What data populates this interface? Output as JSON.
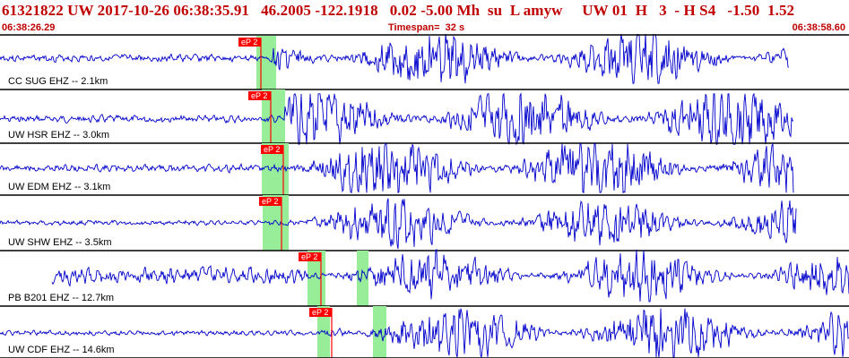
{
  "header": {
    "title": "61321822 UW 2017-10-26 06:38:35.91   46.2005 -122.1918   0.02 -5.00 Mh  su  L amyw     UW 01  H   3  - H S4   -1.50  1.52",
    "start_time": "06:38:26.29",
    "timespan": "Timespan=  32 s",
    "end_time": "06:38:58.60"
  },
  "colors": {
    "trace": "#0000cc",
    "pick": "#ff0000",
    "window": "#98ee98",
    "header_text": "#c00000",
    "divider": "#000000"
  },
  "panels": [
    {
      "label": "CC SUG EHZ -- 2.1km",
      "pick_label": "eP 2",
      "seed": 3
    },
    {
      "label": "UW HSR EHZ -- 3.0km",
      "pick_label": "eP 2",
      "seed": 7
    },
    {
      "label": "UW EDM EHZ -- 3.1km",
      "pick_label": "eP 2",
      "seed": 11
    },
    {
      "label": "UW SHW EHZ -- 3.5km",
      "pick_label": "eP 2",
      "seed": 17
    },
    {
      "label": "PB B201 EHZ -- 12.7km",
      "pick_label": "eP 2",
      "seed": 23
    },
    {
      "label": "UW CDF EHZ -- 14.6km",
      "pick_label": "eP 2",
      "seed": 29
    }
  ]
}
